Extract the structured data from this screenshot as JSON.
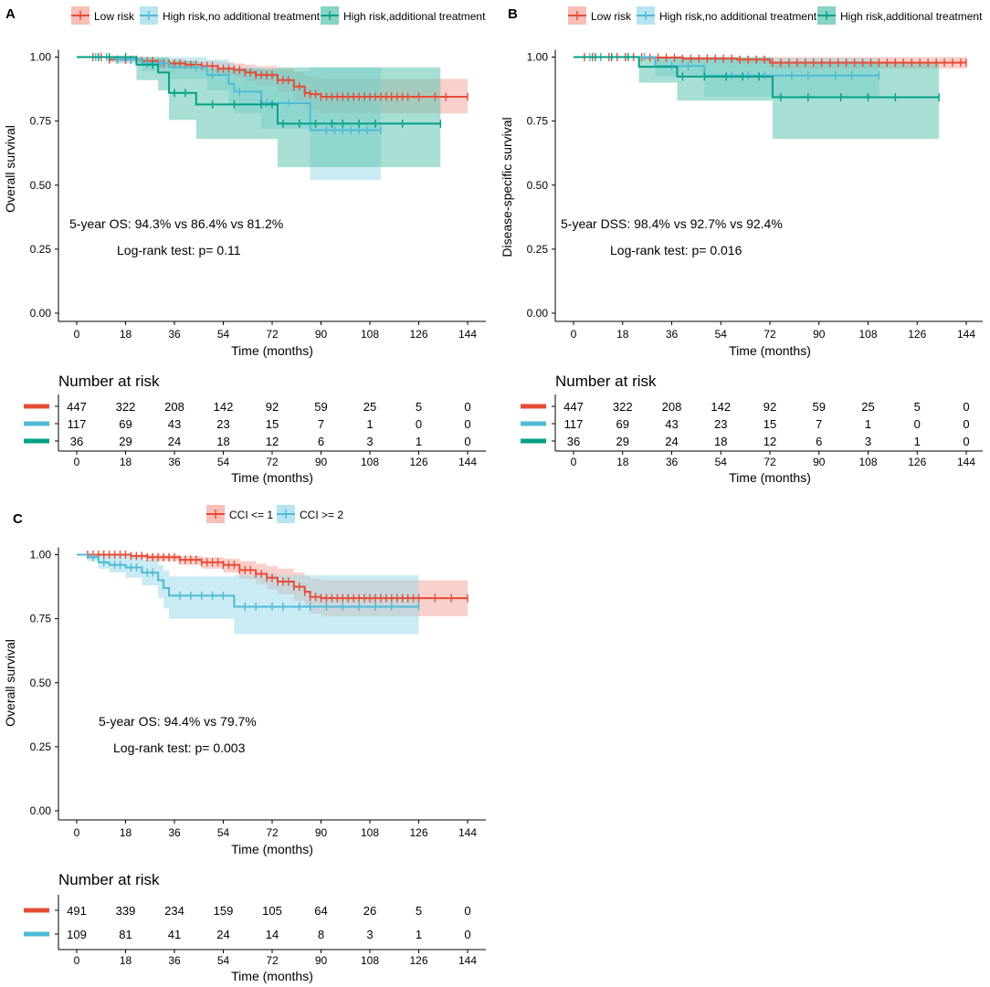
{
  "colors": {
    "low": "#E64B35",
    "no_treat": "#4DBBD5",
    "treat": "#00A087",
    "low_band": "#F4A9A0",
    "no_treat_band": "#9FDBEA",
    "treat_band": "#5FC4B0"
  },
  "chart_data": [
    {
      "panel": "A",
      "type": "line",
      "kind": "kaplan-meier",
      "ylabel": "Overall survival",
      "xlabel": "Time (months)",
      "xlim": [
        0,
        144
      ],
      "ylim": [
        0,
        1
      ],
      "x_ticks": [
        "0",
        "18",
        "36",
        "54",
        "72",
        "90",
        "108",
        "126",
        "144"
      ],
      "y_ticks": [
        "0.00",
        "0.25",
        "0.50",
        "0.75",
        "1.00"
      ],
      "annotation": "5-year OS: 94.3% vs 86.4% vs 81.2%",
      "pvalue": "Log-rank test: p= 0.11",
      "risk_title": "Number at risk",
      "risk_xlabel": "Time (months)",
      "series": [
        {
          "name": "Low risk",
          "color_key": "low",
          "x": [
            0,
            12,
            24,
            30,
            40,
            46,
            52,
            58,
            62,
            66,
            74,
            80,
            84,
            86,
            90,
            144
          ],
          "y": [
            1.0,
            0.99,
            0.985,
            0.975,
            0.97,
            0.965,
            0.955,
            0.95,
            0.94,
            0.93,
            0.91,
            0.885,
            0.86,
            0.855,
            0.845,
            0.845
          ],
          "band_lower": [
            1.0,
            0.98,
            0.975,
            0.96,
            0.955,
            0.945,
            0.93,
            0.92,
            0.905,
            0.89,
            0.865,
            0.83,
            0.8,
            0.79,
            0.78,
            0.78
          ],
          "band_upper": [
            1.0,
            1.0,
            0.995,
            0.99,
            0.985,
            0.985,
            0.98,
            0.975,
            0.97,
            0.965,
            0.955,
            0.94,
            0.925,
            0.92,
            0.915,
            0.915
          ],
          "censors": [
            6,
            9,
            12,
            15,
            18,
            20,
            22,
            24,
            26,
            28,
            30,
            32,
            34,
            36,
            38,
            40,
            42,
            44,
            46,
            48,
            50,
            52,
            54,
            56,
            58,
            60,
            62,
            64,
            66,
            68,
            70,
            72,
            74,
            76,
            78,
            80,
            82,
            84,
            86,
            88,
            90,
            92,
            94,
            96,
            98,
            100,
            102,
            104,
            106,
            108,
            110,
            112,
            114,
            116,
            118,
            120,
            122,
            126,
            132,
            136,
            144
          ],
          "at_risk": [
            "447",
            "322",
            "208",
            "142",
            "92",
            "59",
            "25",
            "5",
            "0"
          ]
        },
        {
          "name": "High risk,no additional treatment",
          "color_key": "no_treat",
          "x": [
            0,
            14,
            24,
            34,
            48,
            56,
            58,
            68,
            86,
            112
          ],
          "y": [
            1.0,
            0.99,
            0.975,
            0.96,
            0.93,
            0.895,
            0.865,
            0.82,
            0.715,
            0.715
          ],
          "band_lower": [
            1.0,
            0.975,
            0.945,
            0.915,
            0.87,
            0.82,
            0.78,
            0.72,
            0.52,
            0.52
          ],
          "band_upper": [
            1.0,
            1.0,
            1.0,
            1.0,
            0.99,
            0.975,
            0.96,
            0.945,
            0.96,
            0.96
          ],
          "censors": [
            7,
            11,
            15,
            20,
            26,
            31,
            44,
            50,
            60,
            70,
            78,
            92,
            95,
            98,
            101,
            104,
            107,
            112
          ],
          "at_risk": [
            "117",
            "69",
            "43",
            "23",
            "15",
            "7",
            "1",
            "0",
            "0"
          ]
        },
        {
          "name": "High risk,additional treatment",
          "color_key": "treat",
          "x": [
            0,
            22,
            30,
            34,
            44,
            74,
            134
          ],
          "y": [
            1.0,
            0.97,
            0.94,
            0.86,
            0.815,
            0.74,
            0.74
          ],
          "band_lower": [
            1.0,
            0.91,
            0.87,
            0.755,
            0.68,
            0.57,
            0.57
          ],
          "band_upper": [
            1.0,
            1.0,
            1.0,
            0.985,
            0.955,
            0.96,
            0.96
          ],
          "censors": [
            8,
            12,
            18,
            28,
            36,
            40,
            50,
            58,
            68,
            72,
            76,
            82,
            88,
            94,
            98,
            104,
            110,
            120,
            134
          ],
          "at_risk": [
            "36",
            "29",
            "24",
            "18",
            "12",
            "6",
            "3",
            "1",
            "0"
          ]
        }
      ]
    },
    {
      "panel": "B",
      "type": "line",
      "kind": "kaplan-meier",
      "ylabel": "Disease-specific survival",
      "xlabel": "Time (months)",
      "xlim": [
        0,
        144
      ],
      "ylim": [
        0,
        1
      ],
      "x_ticks": [
        "0",
        "18",
        "36",
        "54",
        "72",
        "90",
        "108",
        "126",
        "144"
      ],
      "y_ticks": [
        "0.00",
        "0.25",
        "0.50",
        "0.75",
        "1.00"
      ],
      "annotation": "5-year DSS: 98.4% vs 92.7% vs 92.4%",
      "pvalue": "Log-rank test: p= 0.016",
      "risk_title": "Number at risk",
      "risk_xlabel": "Time (months)",
      "series": [
        {
          "name": "Low risk",
          "color_key": "low",
          "x": [
            0,
            26,
            40,
            60,
            72,
            144
          ],
          "y": [
            1.0,
            0.998,
            0.994,
            0.99,
            0.978,
            0.978
          ],
          "band_lower": [
            1.0,
            0.99,
            0.985,
            0.975,
            0.955,
            0.955
          ],
          "band_upper": [
            1.0,
            1.0,
            1.0,
            1.0,
            1.0,
            1.0
          ],
          "censors": [
            4,
            7,
            10,
            13,
            16,
            19,
            22,
            25,
            28,
            31,
            34,
            37,
            40,
            43,
            46,
            49,
            52,
            55,
            58,
            61,
            64,
            67,
            70,
            73,
            76,
            79,
            82,
            85,
            88,
            91,
            94,
            97,
            100,
            103,
            106,
            109,
            112,
            115,
            118,
            121,
            124,
            127,
            130,
            133,
            136,
            139,
            142,
            144
          ],
          "at_risk": [
            "447",
            "322",
            "208",
            "142",
            "92",
            "59",
            "25",
            "5",
            "0"
          ]
        },
        {
          "name": "High risk,no additional treatment",
          "color_key": "no_treat",
          "x": [
            0,
            30,
            48,
            112
          ],
          "y": [
            1.0,
            0.965,
            0.928,
            0.928
          ],
          "band_lower": [
            1.0,
            0.925,
            0.845,
            0.845
          ],
          "band_upper": [
            1.0,
            1.0,
            0.995,
            0.995
          ],
          "censors": [
            6,
            10,
            14,
            20,
            26,
            36,
            42,
            58,
            64,
            70,
            80,
            86,
            96,
            102,
            112
          ],
          "at_risk": [
            "117",
            "69",
            "43",
            "23",
            "15",
            "7",
            "1",
            "0",
            "0"
          ]
        },
        {
          "name": "High risk,additional treatment",
          "color_key": "treat",
          "x": [
            0,
            24,
            38,
            73,
            134
          ],
          "y": [
            1.0,
            0.962,
            0.924,
            0.843,
            0.843
          ],
          "band_lower": [
            1.0,
            0.9,
            0.83,
            0.68,
            0.68
          ],
          "band_upper": [
            1.0,
            1.0,
            1.0,
            0.98,
            0.98
          ],
          "censors": [
            8,
            14,
            20,
            40,
            48,
            56,
            62,
            68,
            76,
            86,
            98,
            108,
            118,
            134
          ],
          "at_risk": [
            "36",
            "29",
            "24",
            "18",
            "12",
            "6",
            "3",
            "1",
            "0"
          ]
        }
      ]
    },
    {
      "panel": "C",
      "type": "line",
      "kind": "kaplan-meier",
      "ylabel": "Overall survival",
      "xlabel": "Time (months)",
      "xlim": [
        0,
        144
      ],
      "ylim": [
        0,
        1
      ],
      "x_ticks": [
        "0",
        "18",
        "36",
        "54",
        "72",
        "90",
        "108",
        "126",
        "144"
      ],
      "y_ticks": [
        "0.00",
        "0.25",
        "0.50",
        "0.75",
        "1.00"
      ],
      "annotation": "5-year OS: 94.4% vs 79.7%",
      "pvalue": "Log-rank test: p= 0.003",
      "risk_title": "Number at risk",
      "risk_xlabel": "Time (months)",
      "series": [
        {
          "name": "CCI <= 1",
          "color_key": "low",
          "x": [
            0,
            20,
            26,
            38,
            46,
            54,
            60,
            66,
            70,
            74,
            80,
            84,
            86,
            90,
            144
          ],
          "y": [
            1.0,
            0.995,
            0.99,
            0.98,
            0.97,
            0.96,
            0.94,
            0.925,
            0.91,
            0.895,
            0.875,
            0.855,
            0.835,
            0.83,
            0.83
          ],
          "band_lower": [
            1.0,
            0.985,
            0.975,
            0.96,
            0.945,
            0.93,
            0.905,
            0.885,
            0.865,
            0.845,
            0.82,
            0.795,
            0.77,
            0.76,
            0.76
          ],
          "band_upper": [
            1.0,
            1.0,
            1.0,
            0.995,
            0.99,
            0.985,
            0.975,
            0.965,
            0.955,
            0.945,
            0.93,
            0.915,
            0.905,
            0.9,
            0.9
          ],
          "censors": [
            4,
            6,
            8,
            10,
            12,
            14,
            16,
            18,
            20,
            22,
            24,
            26,
            28,
            30,
            32,
            34,
            36,
            38,
            40,
            42,
            44,
            46,
            48,
            50,
            52,
            54,
            56,
            58,
            60,
            62,
            64,
            66,
            68,
            70,
            72,
            74,
            76,
            78,
            80,
            82,
            84,
            86,
            88,
            90,
            92,
            94,
            96,
            98,
            100,
            102,
            104,
            106,
            108,
            110,
            112,
            114,
            116,
            118,
            120,
            122,
            124,
            126,
            132,
            138,
            144
          ],
          "at_risk": [
            "491",
            "339",
            "234",
            "159",
            "105",
            "64",
            "26",
            "5",
            "0"
          ]
        },
        {
          "name": "CCI >= 2",
          "color_key": "no_treat",
          "x": [
            0,
            4,
            8,
            12,
            18,
            24,
            30,
            32,
            34,
            58,
            126
          ],
          "y": [
            1.0,
            0.99,
            0.97,
            0.96,
            0.95,
            0.93,
            0.9,
            0.87,
            0.84,
            0.797,
            0.797
          ],
          "band_lower": [
            1.0,
            0.975,
            0.945,
            0.93,
            0.91,
            0.88,
            0.83,
            0.79,
            0.75,
            0.69,
            0.69
          ],
          "band_upper": [
            1.0,
            1.0,
            1.0,
            1.0,
            0.995,
            0.98,
            0.96,
            0.94,
            0.915,
            0.92,
            0.92
          ],
          "censors": [
            6,
            10,
            14,
            16,
            20,
            22,
            26,
            28,
            38,
            42,
            46,
            50,
            54,
            62,
            66,
            72,
            76,
            82,
            86,
            92,
            98,
            104,
            110,
            116,
            126
          ],
          "at_risk": [
            "109",
            "81",
            "41",
            "24",
            "14",
            "8",
            "3",
            "1",
            "0"
          ]
        }
      ]
    }
  ]
}
